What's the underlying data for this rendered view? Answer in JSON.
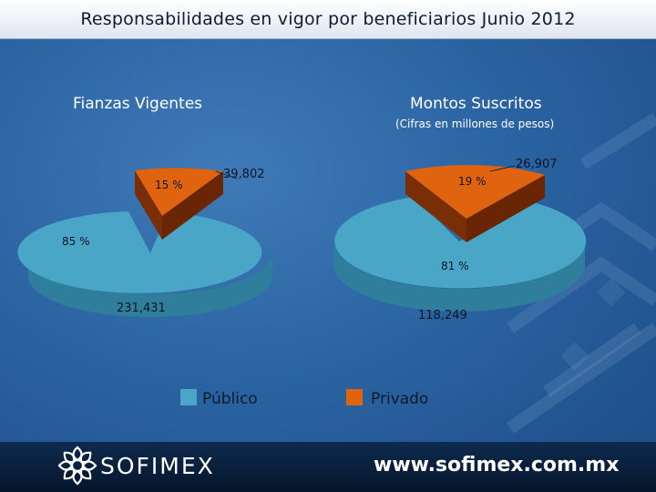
{
  "title": "Responsabilidades en vigor por beneficiarios Junio 2012",
  "colors": {
    "publico": "#4aa6c6",
    "privado": "#e06410"
  },
  "chart_data": [
    {
      "type": "pie",
      "title": "Fianzas Vigentes",
      "subtitle": "",
      "slices": [
        {
          "name": "Público",
          "percent_label": "85 %",
          "value_label": "231,431",
          "value": 231431
        },
        {
          "name": "Privado",
          "percent_label": "15 %",
          "value_label": "39,802",
          "value": 39802
        }
      ]
    },
    {
      "type": "pie",
      "title": "Montos Suscritos",
      "subtitle": "(Cifras en millones de pesos)",
      "slices": [
        {
          "name": "Público",
          "percent_label": "81 %",
          "value_label": "118,249",
          "value": 118249
        },
        {
          "name": "Privado",
          "percent_label": "19 %",
          "value_label": "26,907",
          "value": 26907
        }
      ]
    }
  ],
  "legend": [
    {
      "name": "Público",
      "color": "#4aa6c6"
    },
    {
      "name": "Privado",
      "color": "#e06410"
    }
  ],
  "footer": {
    "brand": "SOFIMEX",
    "website": "www.sofimex.com.mx"
  }
}
